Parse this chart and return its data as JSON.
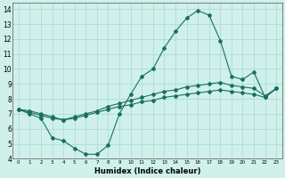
{
  "xlabel": "Humidex (Indice chaleur)",
  "bg_color": "#cff0eb",
  "grid_color": "#aad8d3",
  "line_color": "#1a7060",
  "xlim": [
    -0.5,
    23.5
  ],
  "ylim": [
    4,
    14.4
  ],
  "xticks": [
    0,
    1,
    2,
    3,
    4,
    5,
    6,
    7,
    8,
    9,
    10,
    11,
    12,
    13,
    14,
    15,
    16,
    17,
    18,
    19,
    20,
    21,
    22,
    23
  ],
  "yticks": [
    4,
    5,
    6,
    7,
    8,
    9,
    10,
    11,
    12,
    13,
    14
  ],
  "line1_x": [
    0,
    1,
    2,
    3,
    4,
    5,
    6,
    7,
    8,
    9,
    10,
    11,
    12,
    13,
    14,
    15,
    16,
    17,
    18,
    19,
    20,
    21,
    22,
    23
  ],
  "line1_y": [
    7.3,
    7.0,
    6.7,
    5.4,
    5.2,
    4.7,
    4.3,
    4.3,
    4.9,
    7.0,
    8.3,
    9.5,
    10.0,
    11.4,
    12.5,
    13.4,
    13.9,
    13.6,
    11.9,
    9.5,
    9.3,
    9.8,
    8.1,
    8.7
  ],
  "line2_x": [
    0,
    1,
    2,
    3,
    4,
    5,
    6,
    7,
    8,
    9,
    10,
    11,
    12,
    13,
    14,
    15,
    16,
    17,
    18,
    19,
    20,
    21,
    22,
    23
  ],
  "line2_y": [
    7.3,
    7.2,
    7.0,
    6.8,
    6.6,
    6.8,
    7.0,
    7.2,
    7.5,
    7.7,
    7.9,
    8.1,
    8.3,
    8.5,
    8.6,
    8.8,
    8.9,
    9.0,
    9.1,
    8.9,
    8.8,
    8.7,
    8.2,
    8.7
  ],
  "line3_x": [
    0,
    1,
    2,
    3,
    4,
    5,
    6,
    7,
    8,
    9,
    10,
    11,
    12,
    13,
    14,
    15,
    16,
    17,
    18,
    19,
    20,
    21,
    22,
    23
  ],
  "line3_y": [
    7.3,
    7.1,
    6.9,
    6.7,
    6.6,
    6.7,
    6.9,
    7.1,
    7.3,
    7.5,
    7.6,
    7.8,
    7.9,
    8.1,
    8.2,
    8.3,
    8.4,
    8.5,
    8.6,
    8.5,
    8.4,
    8.3,
    8.1,
    8.7
  ]
}
